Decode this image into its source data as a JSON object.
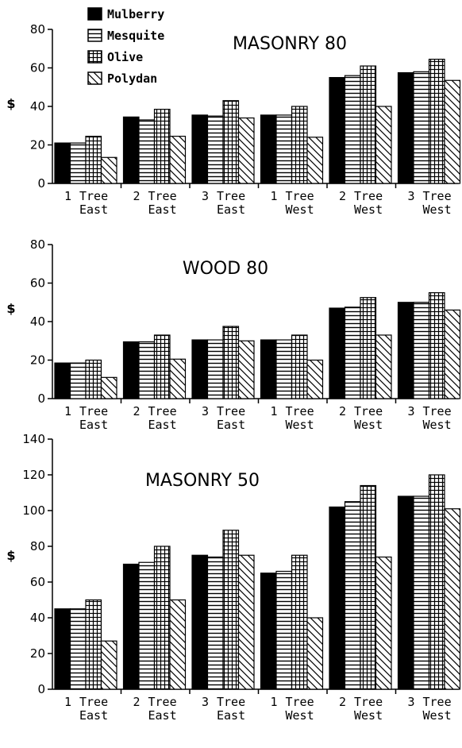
{
  "chart_data": [
    {
      "type": "bar",
      "title": "MASONRY 80",
      "ylabel": "$",
      "ylim": [
        0,
        80
      ],
      "yticks": [
        0,
        20,
        40,
        60,
        80
      ],
      "categories": [
        [
          "1",
          "Tree",
          "East"
        ],
        [
          "2",
          "Tree",
          "East"
        ],
        [
          "3",
          "Tree",
          "East"
        ],
        [
          "1",
          "Tree",
          "West"
        ],
        [
          "2",
          "Tree",
          "West"
        ],
        [
          "3",
          "Tree",
          "West"
        ]
      ],
      "series": [
        {
          "name": "Mulberry",
          "values": [
            21,
            34.5,
            35.5,
            35.5,
            55,
            57.5
          ]
        },
        {
          "name": "Mesquite",
          "values": [
            21,
            33,
            35,
            35.5,
            56,
            58
          ]
        },
        {
          "name": "Olive",
          "values": [
            24.5,
            38.5,
            43,
            40,
            61,
            64.5
          ]
        },
        {
          "name": "Polydan",
          "values": [
            13.5,
            24.5,
            34,
            24,
            40,
            53.5
          ]
        }
      ],
      "legend": "top-left"
    },
    {
      "type": "bar",
      "title": "WOOD 80",
      "ylabel": "$",
      "ylim": [
        0,
        80
      ],
      "yticks": [
        0,
        20,
        40,
        60,
        80
      ],
      "categories": [
        [
          "1",
          "Tree",
          "East"
        ],
        [
          "2",
          "Tree",
          "East"
        ],
        [
          "3",
          "Tree",
          "East"
        ],
        [
          "1",
          "Tree",
          "West"
        ],
        [
          "2",
          "Tree",
          "West"
        ],
        [
          "3",
          "Tree",
          "West"
        ]
      ],
      "series": [
        {
          "name": "Mulberry",
          "values": [
            18.5,
            29.5,
            30.5,
            30.5,
            47,
            50
          ]
        },
        {
          "name": "Mesquite",
          "values": [
            18.5,
            29.5,
            30.5,
            30.5,
            47.5,
            50
          ]
        },
        {
          "name": "Olive",
          "values": [
            20,
            33,
            37.5,
            33,
            52.5,
            55
          ]
        },
        {
          "name": "Polydan",
          "values": [
            11,
            20.5,
            30,
            20,
            33,
            46
          ]
        }
      ]
    },
    {
      "type": "bar",
      "title": "MASONRY 50",
      "ylabel": "$",
      "ylim": [
        0,
        140
      ],
      "yticks": [
        0,
        20,
        40,
        60,
        80,
        100,
        120,
        140
      ],
      "categories": [
        [
          "1",
          "Tree",
          "East"
        ],
        [
          "2",
          "Tree",
          "East"
        ],
        [
          "3",
          "Tree",
          "East"
        ],
        [
          "1",
          "Tree",
          "West"
        ],
        [
          "2",
          "Tree",
          "West"
        ],
        [
          "3",
          "Tree",
          "West"
        ]
      ],
      "series": [
        {
          "name": "Mulberry",
          "values": [
            45,
            70,
            75,
            65,
            102,
            108
          ]
        },
        {
          "name": "Mesquite",
          "values": [
            45,
            71,
            74,
            66,
            105,
            108
          ]
        },
        {
          "name": "Olive",
          "values": [
            50,
            80,
            89,
            75,
            114,
            120
          ]
        },
        {
          "name": "Polydan",
          "values": [
            27,
            50,
            75,
            40,
            74,
            101
          ]
        }
      ]
    }
  ],
  "legend": {
    "items": [
      {
        "name": "Mulberry",
        "pattern": "solid"
      },
      {
        "name": "Mesquite",
        "pattern": "horizontal-lines"
      },
      {
        "name": "Olive",
        "pattern": "grid"
      },
      {
        "name": "Polydan",
        "pattern": "diagonal-lines"
      }
    ]
  },
  "colors": {
    "ink": "#000000",
    "background": "#ffffff"
  }
}
